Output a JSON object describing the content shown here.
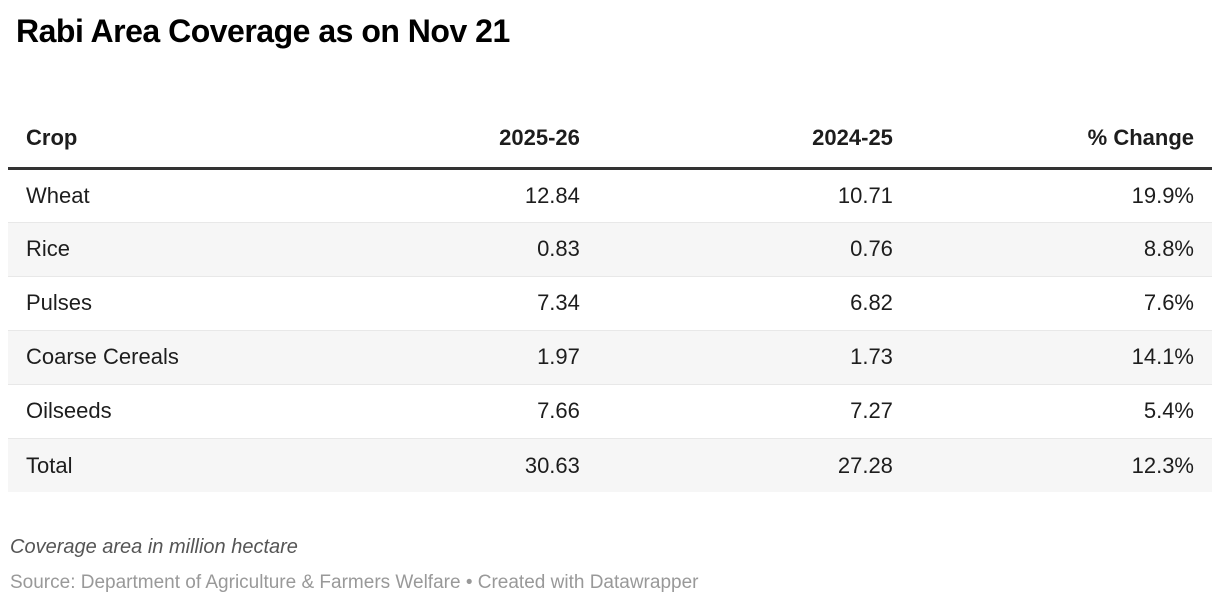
{
  "header": {
    "title": "Rabi Area Coverage as on Nov 21"
  },
  "chart_data": {
    "type": "table",
    "title": "Rabi Area Coverage as on Nov 21",
    "columns": [
      "Crop",
      "2025-26",
      "2024-25",
      "% Change"
    ],
    "rows": [
      [
        "Wheat",
        "12.84",
        "10.71",
        "19.9%"
      ],
      [
        "Rice",
        "0.83",
        "0.76",
        "8.8%"
      ],
      [
        "Pulses",
        "7.34",
        "6.82",
        "7.6%"
      ],
      [
        "Coarse Cereals",
        "1.97",
        "1.73",
        "14.1%"
      ],
      [
        "Oilseeds",
        "7.66",
        "7.27",
        "5.4%"
      ],
      [
        "Total",
        "30.63",
        "27.28",
        "12.3%"
      ]
    ],
    "unit_note": "Coverage area in million hectare",
    "layout_hints": {
      "striped_rows": true,
      "striped_pattern": "even rows shaded",
      "numeric_alignment": "right",
      "first_column_alignment": "left",
      "header_border": "thick dark bottom border"
    }
  },
  "footer": {
    "note": "Coverage area in million hectare",
    "source": "Source: Department of Agriculture & Farmers Welfare • Created with Datawrapper"
  },
  "colors": {
    "title_text": "#000000",
    "body_text": "#1d1d1d",
    "header_border": "#333333",
    "row_divider": "#e8e8e8",
    "row_stripe": "#f6f6f6",
    "note_text": "#555555",
    "source_text": "#999999",
    "background": "#ffffff"
  }
}
